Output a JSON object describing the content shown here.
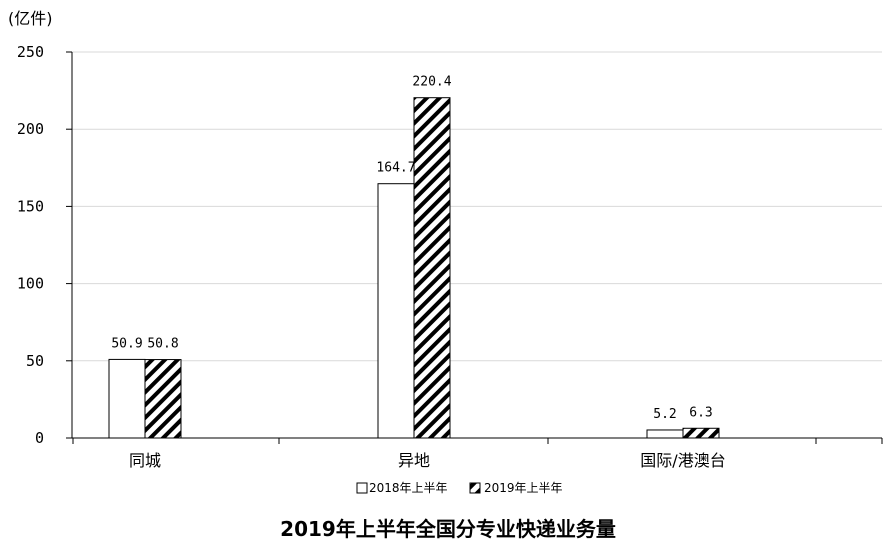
{
  "chart_data": {
    "type": "bar",
    "title": "2019年上半年全国分专业快递业务量",
    "ylabel": "(亿件)",
    "xlabel": "",
    "categories": [
      "同城",
      "异地",
      "国际/港澳台"
    ],
    "series": [
      {
        "name": "2018年上半年",
        "values": [
          50.9,
          164.7,
          5.2
        ],
        "labels": [
          "50.9",
          "164.7",
          "5.2"
        ],
        "fill": "hollow"
      },
      {
        "name": "2019年上半年",
        "values": [
          50.8,
          220.4,
          6.3
        ],
        "labels": [
          "50.8",
          "220.4",
          "6.3"
        ],
        "fill": "hatched"
      }
    ],
    "ylim": [
      0,
      250
    ],
    "yticks": [
      0,
      50,
      100,
      150,
      200,
      250
    ],
    "ytick_labels": [
      "0",
      "50",
      "100",
      "150",
      "200",
      "250"
    ],
    "grid": true,
    "legend_position": "bottom",
    "colors": {
      "bar_stroke": "#000000",
      "bar_fill": "#ffffff",
      "hatch": "#000000",
      "grid": "#d9d9d9",
      "axis": "#000000"
    }
  }
}
